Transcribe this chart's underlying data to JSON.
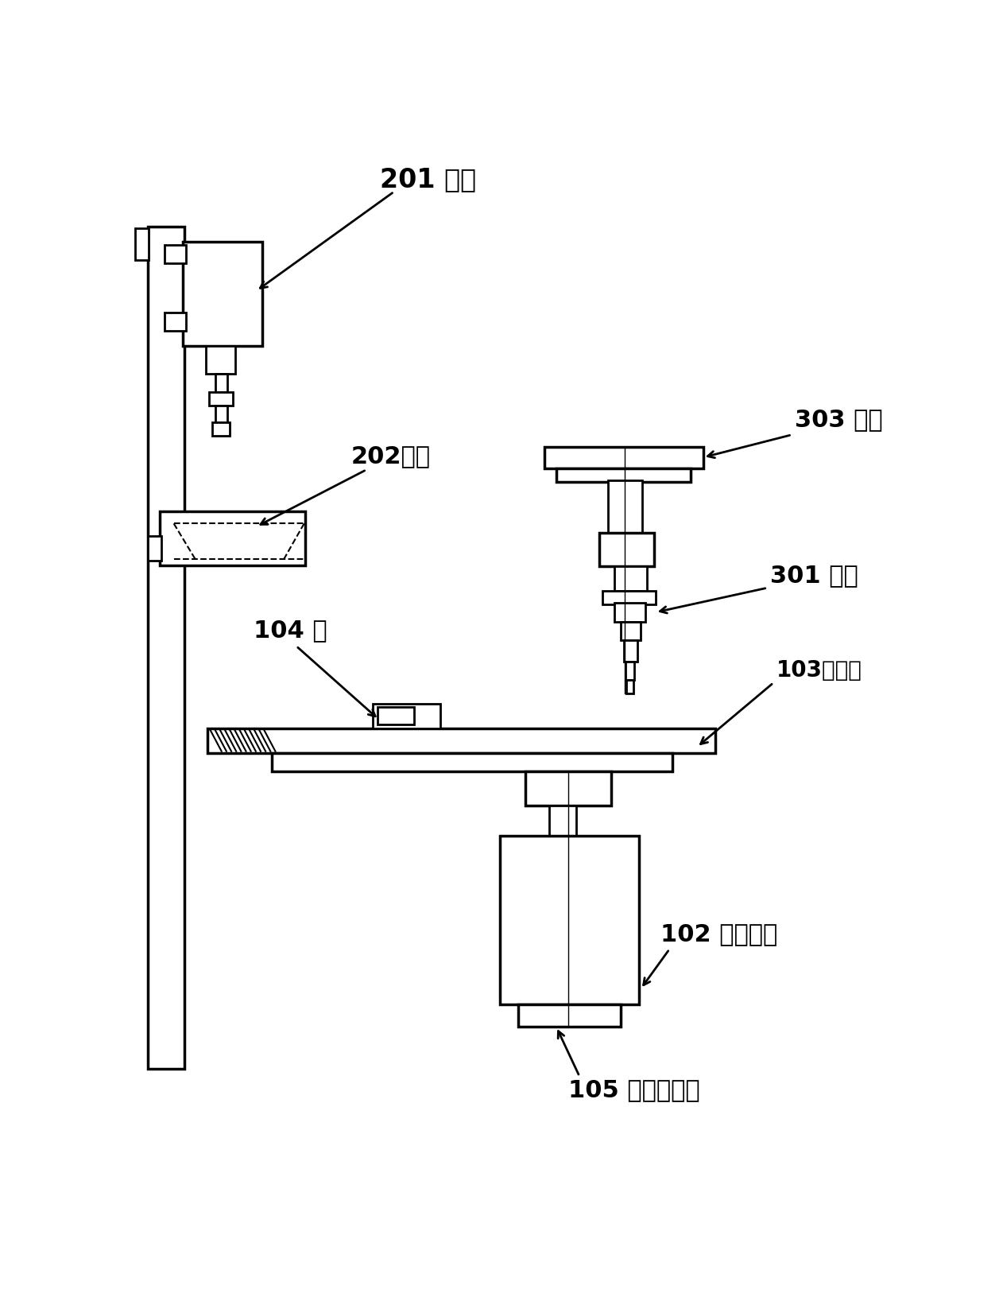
{
  "bg_color": "#ffffff",
  "line_color": "#000000",
  "labels": {
    "camera": "201 相机",
    "lighting": "202照明",
    "groove": "104 槽",
    "box": "303 箱体",
    "nozzle": "301 吸嘴",
    "supply_table": "103供给台",
    "hopper": "102 供给料斗",
    "motor": "105 脉冲电动机"
  },
  "figsize": [
    12.62,
    16.36
  ],
  "dpi": 100
}
